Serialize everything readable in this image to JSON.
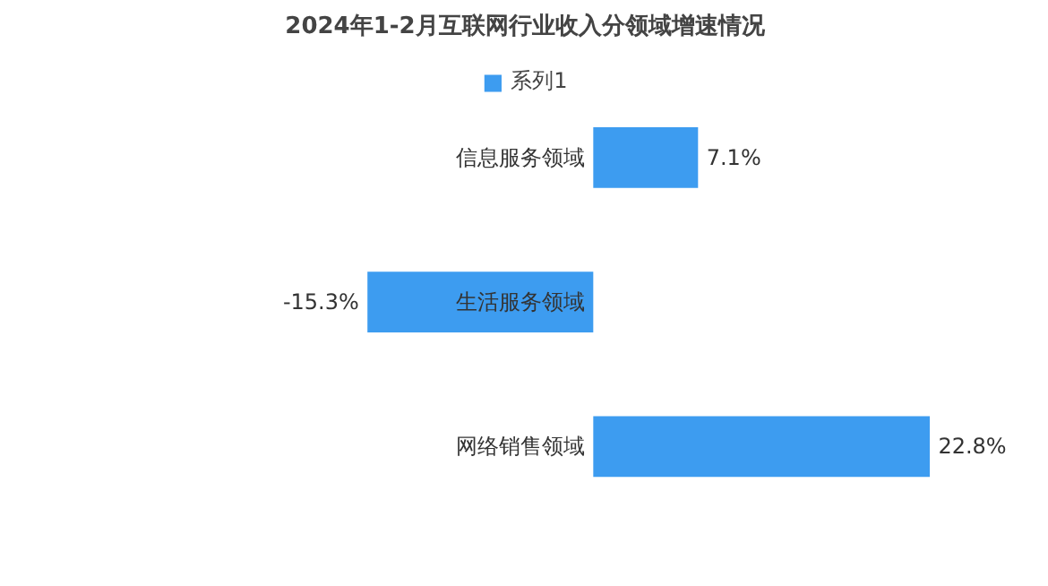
{
  "chart_data": {
    "type": "bar",
    "orientation": "horizontal",
    "title": "2024年1-2月互联网行业收入分领域增速情况",
    "categories": [
      "信息服务领域",
      "生活服务领域",
      "网络销售领域"
    ],
    "series": [
      {
        "name": "系列1",
        "color": "#3d9cf0",
        "values": [
          7.1,
          -15.3,
          22.8
        ],
        "value_labels": [
          "7.1%",
          "-15.3%",
          "22.8%"
        ]
      }
    ],
    "legend": "top",
    "tick_labels": "y"
  }
}
